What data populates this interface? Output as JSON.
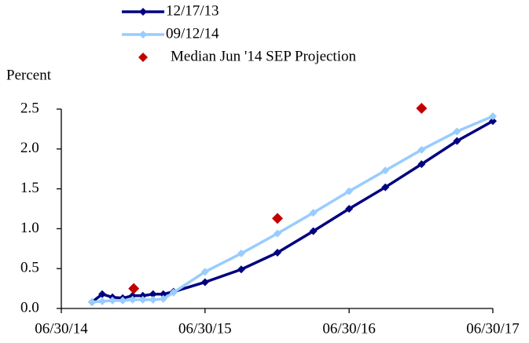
{
  "chart_data": {
    "type": "line",
    "y_label": "Percent",
    "xlim": [
      "06/30/14",
      "06/30/17"
    ],
    "xticks": [
      "06/30/14",
      "06/30/15",
      "06/30/16",
      "06/30/17"
    ],
    "ylim": [
      0,
      2.5
    ],
    "yticks": [
      {
        "value": 0,
        "label": "0.0"
      },
      0.5,
      {
        "value": 1,
        "label": "1.0"
      },
      1.5,
      {
        "value": 2,
        "label": "2.0"
      },
      2.5
    ],
    "grid": false,
    "legend": "top",
    "series": [
      {
        "name": "12/17/13",
        "color": "#00007f",
        "marker": "diamond",
        "x": [
          "09/16/14",
          "10/12/14",
          "11/07/14",
          "12/03/14",
          "12/28/14",
          "01/23/15",
          "02/18/15",
          "03/16/15",
          "04/11/15",
          "06/30/15",
          "09/30/15",
          "12/31/15",
          "03/31/16",
          "06/30/16",
          "09/30/16",
          "12/31/16",
          "03/31/17",
          "06/30/17"
        ],
        "values": [
          0.08,
          0.18,
          0.14,
          0.13,
          0.16,
          0.16,
          0.18,
          0.18,
          0.21,
          0.33,
          0.49,
          0.7,
          0.97,
          1.25,
          1.52,
          1.81,
          2.1,
          2.35
        ]
      },
      {
        "name": "09/12/14",
        "color": "#99ccff",
        "marker": "diamond",
        "x": [
          "09/16/14",
          "10/12/14",
          "11/07/14",
          "12/03/14",
          "12/28/14",
          "01/23/15",
          "02/18/15",
          "03/16/15",
          "04/11/15",
          "06/30/15",
          "09/30/15",
          "12/31/15",
          "03/31/16",
          "06/30/16",
          "09/30/16",
          "12/31/16",
          "03/31/17",
          "06/30/17"
        ],
        "values": [
          0.08,
          0.09,
          0.1,
          0.1,
          0.11,
          0.11,
          0.11,
          0.12,
          0.2,
          0.46,
          0.69,
          0.94,
          1.2,
          1.47,
          1.73,
          1.99,
          2.22,
          2.41
        ]
      },
      {
        "name": "Median Jun '14 SEP Projection",
        "color": "#c00000",
        "marker": "diamond",
        "line": false,
        "x": [
          "12/31/14",
          "12/31/15",
          "12/31/16"
        ],
        "values": [
          0.25,
          1.13,
          2.51
        ]
      }
    ]
  }
}
